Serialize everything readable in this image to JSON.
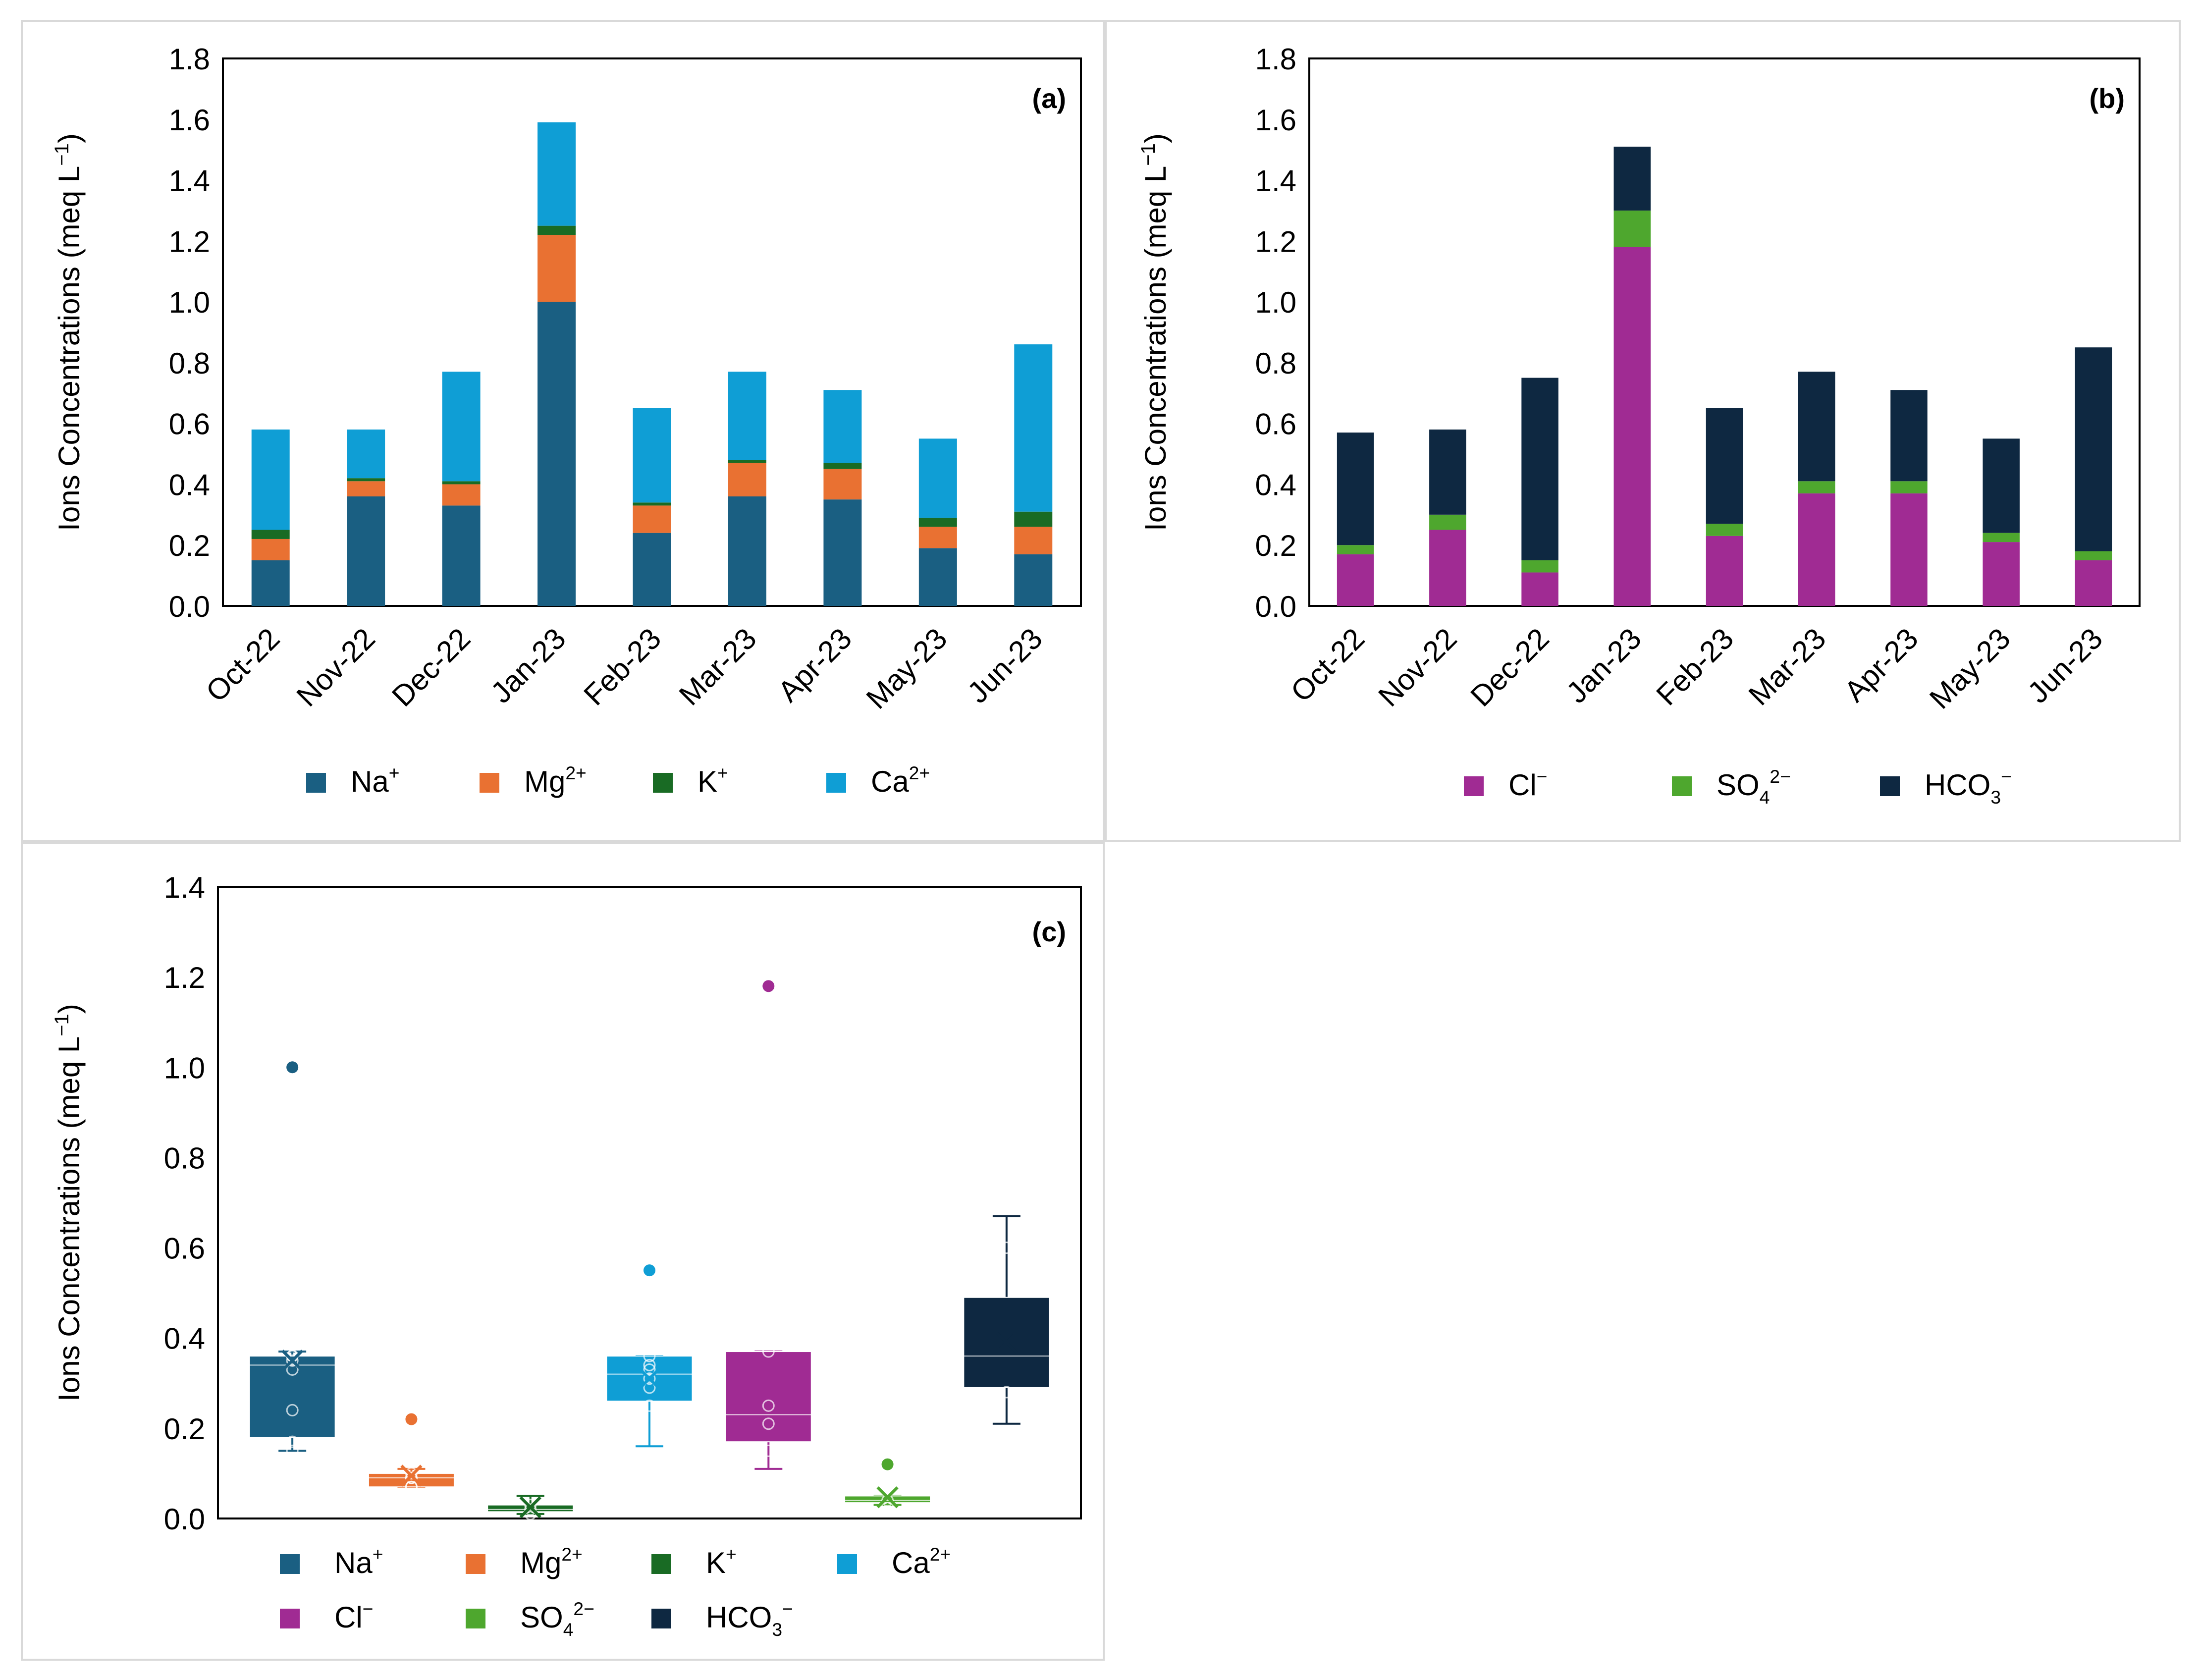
{
  "charts": {
    "a": {
      "axis_title": "Ions Concentrations (meq L",
      "axis_title_sup": "−1",
      "axis_title_end": ")"
    },
    "b": {
      "axis_title": "Ions Concentrations (meq L",
      "axis_title_sup": "−1",
      "axis_title_end": ")"
    },
    "c": {
      "axis_title": "Ions Concentrations (meq L",
      "axis_title_sup": "−1",
      "axis_title_end": ")"
    }
  },
  "chart_data": [
    {
      "panel_label": "(a)",
      "type": "bar",
      "stacked": true,
      "categories": [
        "Oct-22",
        "Nov-22",
        "Dec-22",
        "Jan-23",
        "Feb-23",
        "Mar-23",
        "Apr-23",
        "May-23",
        "Jun-23"
      ],
      "ylim": [
        0,
        1.8
      ],
      "yticks": [
        "0.0",
        "0.2",
        "0.4",
        "0.6",
        "0.8",
        "1.0",
        "1.2",
        "1.4",
        "1.6",
        "1.8"
      ],
      "legend_position": "bottom",
      "series": [
        {
          "name": "Na",
          "sup": "+",
          "color": "#1a5f82",
          "values": [
            0.15,
            0.36,
            0.33,
            1.0,
            0.24,
            0.36,
            0.35,
            0.19,
            0.17
          ]
        },
        {
          "name": "Mg",
          "sup": "2+",
          "color": "#e97132",
          "values": [
            0.07,
            0.05,
            0.07,
            0.22,
            0.09,
            0.11,
            0.1,
            0.07,
            0.09
          ]
        },
        {
          "name": "K",
          "sup": "+",
          "color": "#196b24",
          "values": [
            0.03,
            0.01,
            0.01,
            0.03,
            0.01,
            0.01,
            0.02,
            0.03,
            0.05
          ]
        },
        {
          "name": "Ca",
          "sup": "2+",
          "color": "#0f9ed5",
          "values": [
            0.33,
            0.16,
            0.36,
            0.34,
            0.31,
            0.29,
            0.24,
            0.26,
            0.55
          ]
        }
      ]
    },
    {
      "panel_label": "(b)",
      "type": "bar",
      "stacked": true,
      "categories": [
        "Oct-22",
        "Nov-22",
        "Dec-22",
        "Jan-23",
        "Feb-23",
        "Mar-23",
        "Apr-23",
        "May-23",
        "Jun-23"
      ],
      "ylim": [
        0,
        1.8
      ],
      "yticks": [
        "0.0",
        "0.2",
        "0.4",
        "0.6",
        "0.8",
        "1.0",
        "1.2",
        "1.4",
        "1.6",
        "1.8"
      ],
      "legend_position": "bottom",
      "series": [
        {
          "name": "Cl",
          "sup": "−",
          "color": "#a02b93",
          "values": [
            0.17,
            0.25,
            0.11,
            1.18,
            0.23,
            0.37,
            0.37,
            0.21,
            0.15
          ]
        },
        {
          "name": "SO",
          "sub": "4",
          "sup": "2−",
          "color": "#4ea72e",
          "values": [
            0.03,
            0.05,
            0.04,
            0.12,
            0.04,
            0.04,
            0.04,
            0.03,
            0.03
          ]
        },
        {
          "name": "HCO",
          "sub": "3",
          "sup": "−",
          "color": "#0e2841",
          "values": [
            0.37,
            0.28,
            0.6,
            0.21,
            0.38,
            0.36,
            0.3,
            0.31,
            0.67
          ]
        }
      ]
    },
    {
      "panel_label": "(c)",
      "type": "box",
      "ylim": [
        0,
        1.4
      ],
      "yticks": [
        "0.0",
        "0.2",
        "0.4",
        "0.6",
        "0.8",
        "1.0",
        "1.2",
        "1.4"
      ],
      "legend_position": "bottom",
      "series": [
        {
          "name": "Na",
          "sup": "+",
          "color": "#1a5f82",
          "whisker_low": 0.15,
          "q1": 0.18,
          "median": 0.34,
          "q3": 0.36,
          "whisker_high": 0.37,
          "mean": 0.35,
          "points": [
            0.15,
            0.17,
            0.24,
            0.33,
            0.35,
            0.36,
            0.36
          ],
          "outliers": [
            1.0
          ]
        },
        {
          "name": "Mg",
          "sup": "2+",
          "color": "#e97132",
          "whisker_low": 0.07,
          "q1": 0.07,
          "median": 0.09,
          "q3": 0.1,
          "whisker_high": 0.11,
          "mean": 0.095,
          "points": [
            0.07,
            0.07,
            0.09,
            0.09,
            0.1
          ],
          "outliers": [
            0.22
          ]
        },
        {
          "name": "K",
          "sup": "+",
          "color": "#196b24",
          "whisker_low": 0.01,
          "q1": 0.015,
          "median": 0.02,
          "q3": 0.03,
          "whisker_high": 0.05,
          "mean": 0.025,
          "points": [
            0.01,
            0.02,
            0.03
          ],
          "outliers": []
        },
        {
          "name": "Ca",
          "sup": "2+",
          "color": "#0f9ed5",
          "whisker_low": 0.16,
          "q1": 0.26,
          "median": 0.32,
          "q3": 0.36,
          "whisker_high": 0.36,
          "mean": 0.31,
          "points": [
            0.25,
            0.29,
            0.31,
            0.33,
            0.34,
            0.36
          ],
          "outliers": [
            0.55
          ]
        },
        {
          "name": "Cl",
          "sup": "−",
          "color": "#a02b93",
          "whisker_low": 0.11,
          "q1": 0.17,
          "median": 0.23,
          "q3": 0.37,
          "whisker_high": 0.37,
          "mean": 0.34,
          "points": [
            0.15,
            0.21,
            0.25,
            0.37
          ],
          "outliers": [
            1.18
          ]
        },
        {
          "name": "SO",
          "sub": "4",
          "sup": "2−",
          "color": "#4ea72e",
          "whisker_low": 0.03,
          "q1": 0.035,
          "median": 0.04,
          "q3": 0.05,
          "whisker_high": 0.05,
          "mean": 0.047,
          "points": [
            0.03,
            0.04
          ],
          "outliers": [
            0.12
          ]
        },
        {
          "name": "HCO",
          "sub": "3",
          "sup": "−",
          "color": "#0e2841",
          "whisker_low": 0.21,
          "q1": 0.29,
          "median": 0.36,
          "q3": 0.49,
          "whisker_high": 0.67,
          "mean": 0.39,
          "points": [
            0.28,
            0.6
          ],
          "outliers": []
        }
      ]
    }
  ]
}
